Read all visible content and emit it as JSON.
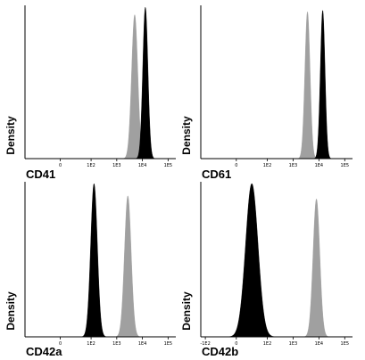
{
  "chart_data": [
    {
      "type": "area",
      "xlabel": "CD41",
      "ylabel": "Density",
      "x_scale": "biexponential",
      "x_ticks": [
        "0",
        "1E2",
        "1E3",
        "1E4",
        "1E5"
      ],
      "series": [
        {
          "color": "#a0a0a0",
          "peak_x": 5000,
          "sigma_decades": 0.12,
          "peak": 0.95
        },
        {
          "color": "#000000",
          "peak_x": 13000,
          "sigma_decades": 0.1,
          "peak": 1.0
        }
      ]
    },
    {
      "type": "area",
      "xlabel": "CD61",
      "ylabel": "Density",
      "x_scale": "biexponential",
      "x_ticks": [
        "0",
        "1E2",
        "1E3",
        "1E4",
        "1E5"
      ],
      "series": [
        {
          "color": "#a0a0a0",
          "peak_x": 3600,
          "sigma_decades": 0.1,
          "peak": 0.97
        },
        {
          "color": "#000000",
          "peak_x": 14000,
          "sigma_decades": 0.09,
          "peak": 0.98
        }
      ]
    },
    {
      "type": "area",
      "xlabel": "CD42a",
      "ylabel": "Density",
      "x_scale": "biexponential",
      "x_ticks": [
        "0",
        "1E2",
        "1E3",
        "1E4",
        "1E5"
      ],
      "series": [
        {
          "color": "#000000",
          "peak_x": 130,
          "sigma_decades": 0.13,
          "peak": 1.0
        },
        {
          "color": "#a0a0a0",
          "peak_x": 2700,
          "sigma_decades": 0.13,
          "peak": 0.92
        }
      ]
    },
    {
      "type": "area",
      "xlabel": "CD42b",
      "ylabel": "Density",
      "x_scale": "biexponential",
      "x_ticks": [
        "-1E2",
        "0",
        "1E2",
        "1E3",
        "1E4",
        "1E5"
      ],
      "series": [
        {
          "color": "#000000",
          "peak_x": 50,
          "sigma_decades": 0.24,
          "peak": 1.0
        },
        {
          "color": "#a0a0a0",
          "peak_x": 8000,
          "sigma_decades": 0.13,
          "peak": 0.9
        }
      ]
    }
  ]
}
